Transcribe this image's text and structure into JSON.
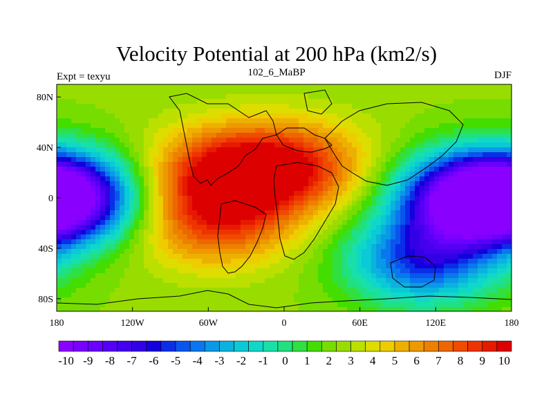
{
  "title": "Velocity Potential at 200 hPa (km2/s)",
  "subtitle_left": "Expt = texyu",
  "subtitle_center": "102_6_MaBP",
  "subtitle_right": "DJF",
  "map": {
    "lon_range": [
      -180,
      180
    ],
    "lat_range": [
      -90,
      90
    ],
    "x_ticks": [
      {
        "value": -180,
        "label": "180"
      },
      {
        "value": -120,
        "label": "120W"
      },
      {
        "value": -60,
        "label": "60W"
      },
      {
        "value": 0,
        "label": "0"
      },
      {
        "value": 60,
        "label": "60E"
      },
      {
        "value": 120,
        "label": "120E"
      },
      {
        "value": 180,
        "label": "180"
      }
    ],
    "y_ticks": [
      {
        "value": 80,
        "label": "80N"
      },
      {
        "value": 40,
        "label": "40N"
      },
      {
        "value": 0,
        "label": "0"
      },
      {
        "value": -40,
        "label": "40S"
      },
      {
        "value": -80,
        "label": "80S"
      }
    ],
    "field_centers": [
      {
        "lon": -45,
        "lat": 20,
        "value": 10.5
      },
      {
        "lon": -55,
        "lat": -20,
        "value": 8.5
      },
      {
        "lon": 10,
        "lat": 25,
        "value": 8.5
      },
      {
        "lon": 150,
        "lat": 0,
        "value": -10.5
      },
      {
        "lon": 110,
        "lat": -50,
        "value": -6
      },
      {
        "lon": -175,
        "lat": 0,
        "value": -9
      }
    ]
  },
  "colorbar": {
    "colors": [
      "#8a00ff",
      "#7a00ff",
      "#6a00ff",
      "#5500f5",
      "#4400ee",
      "#3300e6",
      "#1400dd",
      "#0a2ee8",
      "#0a55ee",
      "#0a77ee",
      "#0a99e6",
      "#0ab3dd",
      "#0acad6",
      "#10d8c8",
      "#18e0a8",
      "#20e080",
      "#30e040",
      "#44dd00",
      "#77dd00",
      "#99dd00",
      "#bbe000",
      "#dddd00",
      "#eecc00",
      "#eeb000",
      "#ee9900",
      "#ee8000",
      "#ee6600",
      "#ee4c00",
      "#ee3300",
      "#e61a00",
      "#dd0000"
    ],
    "labels": [
      "-10",
      "-9",
      "-8",
      "-7",
      "-6",
      "-5",
      "-4",
      "-3",
      "-2",
      "-1",
      "0",
      "1",
      "2",
      "3",
      "4",
      "5",
      "6",
      "7",
      "8",
      "9",
      "10"
    ],
    "min": -10.5,
    "max": 10.5
  }
}
